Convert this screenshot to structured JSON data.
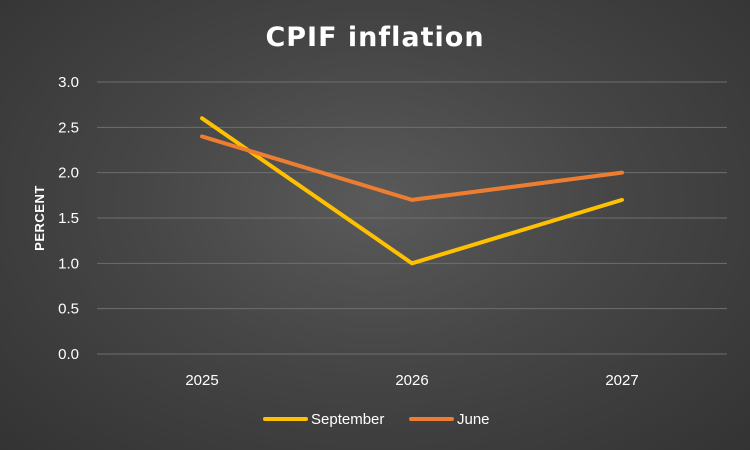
{
  "chart_data": {
    "type": "line",
    "title": "CPIF inflation",
    "xlabel": "",
    "ylabel": "PERCENT",
    "categories": [
      "2025",
      "2026",
      "2027"
    ],
    "ylim": [
      0,
      3.0
    ],
    "yticks": [
      "0.0",
      "0.5",
      "1.0",
      "1.5",
      "2.0",
      "2.5",
      "3.0"
    ],
    "grid": true,
    "legend_position": "bottom",
    "series": [
      {
        "name": "September",
        "color": "#FFC000",
        "values": [
          2.6,
          1.0,
          1.7
        ]
      },
      {
        "name": "June",
        "color": "#ED7D31",
        "values": [
          2.4,
          1.7,
          2.0
        ]
      }
    ]
  }
}
